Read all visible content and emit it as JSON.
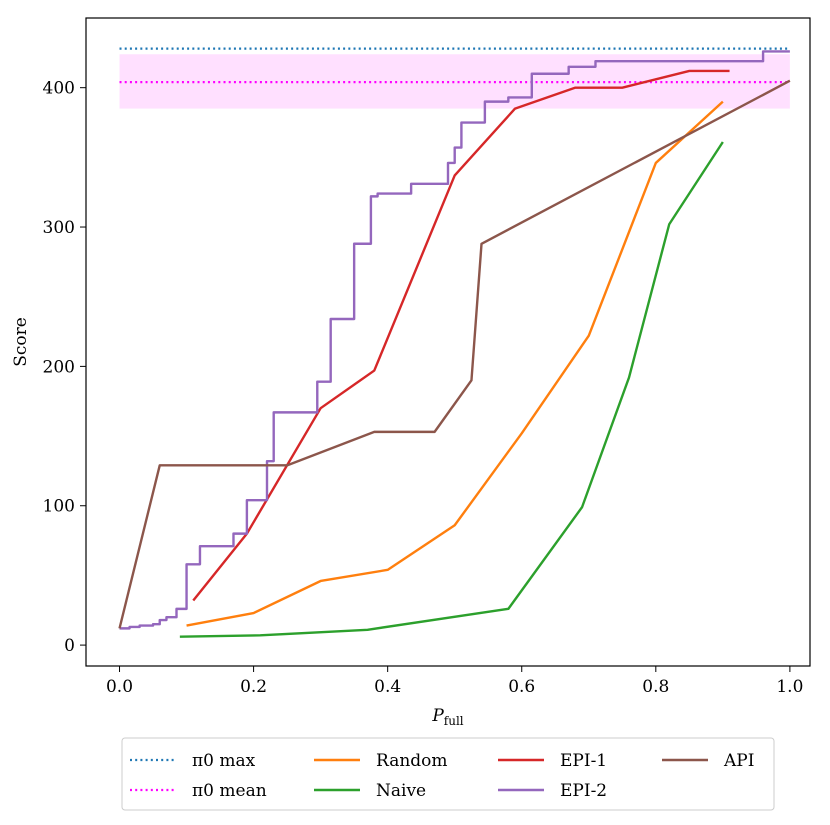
{
  "chart_data": {
    "type": "line",
    "title": "",
    "xlabel": "P",
    "xlabel_sub": "full",
    "ylabel": "Score",
    "xlim": [
      -0.05,
      1.03
    ],
    "ylim": [
      -15,
      450
    ],
    "xticks": [
      0.0,
      0.2,
      0.4,
      0.6,
      0.8,
      1.0
    ],
    "xtick_labels": [
      "0.0",
      "0.2",
      "0.4",
      "0.6",
      "0.8",
      "1.0"
    ],
    "yticks": [
      0,
      100,
      200,
      300,
      400
    ],
    "ytick_labels": [
      "0",
      "100",
      "200",
      "300",
      "400"
    ],
    "grid": false,
    "legend_position": "bottom-center-outside",
    "band": {
      "name": "π0 std band",
      "y_low": 385,
      "y_high": 424,
      "x_range": [
        0.0,
        1.0
      ],
      "color": "#ff00ff",
      "opacity": 0.12
    },
    "hlines": [
      {
        "name": "π0 max",
        "legend_label": "π0 max",
        "y": 428,
        "x_range": [
          0.0,
          1.0
        ],
        "color": "#1f77b4",
        "style": "dotted"
      },
      {
        "name": "π0 mean",
        "legend_label": "π0 mean",
        "y": 404,
        "x_range": [
          0.0,
          1.0
        ],
        "color": "#ff00ff",
        "style": "dotted"
      }
    ],
    "series": [
      {
        "name": "Random",
        "color": "#ff7f0e",
        "step": false,
        "points": [
          [
            0.1,
            14
          ],
          [
            0.2,
            23
          ],
          [
            0.3,
            46
          ],
          [
            0.4,
            54
          ],
          [
            0.5,
            86
          ],
          [
            0.6,
            152
          ],
          [
            0.7,
            222
          ],
          [
            0.8,
            346
          ],
          [
            0.9,
            390
          ]
        ]
      },
      {
        "name": "Naive",
        "color": "#2ca02c",
        "step": false,
        "points": [
          [
            0.09,
            6
          ],
          [
            0.21,
            7
          ],
          [
            0.37,
            11
          ],
          [
            0.58,
            26
          ],
          [
            0.69,
            99
          ],
          [
            0.76,
            192
          ],
          [
            0.82,
            302
          ],
          [
            0.9,
            361
          ]
        ]
      },
      {
        "name": "EPI-1",
        "color": "#d62728",
        "step": false,
        "points": [
          [
            0.11,
            32
          ],
          [
            0.19,
            80
          ],
          [
            0.3,
            170
          ],
          [
            0.38,
            197
          ],
          [
            0.5,
            337
          ],
          [
            0.59,
            385
          ],
          [
            0.68,
            400
          ],
          [
            0.75,
            400
          ],
          [
            0.85,
            412
          ],
          [
            0.91,
            412
          ]
        ]
      },
      {
        "name": "EPI-2",
        "color": "#9467bd",
        "step": true,
        "points": [
          [
            0.0,
            12
          ],
          [
            0.015,
            13
          ],
          [
            0.03,
            14
          ],
          [
            0.05,
            15
          ],
          [
            0.06,
            18
          ],
          [
            0.07,
            20
          ],
          [
            0.085,
            26
          ],
          [
            0.1,
            58
          ],
          [
            0.12,
            71
          ],
          [
            0.17,
            80
          ],
          [
            0.19,
            104
          ],
          [
            0.22,
            132
          ],
          [
            0.23,
            167
          ],
          [
            0.295,
            189
          ],
          [
            0.315,
            234
          ],
          [
            0.35,
            288
          ],
          [
            0.375,
            322
          ],
          [
            0.385,
            324
          ],
          [
            0.435,
            331
          ],
          [
            0.49,
            346
          ],
          [
            0.5,
            357
          ],
          [
            0.51,
            375
          ],
          [
            0.545,
            390
          ],
          [
            0.58,
            393
          ],
          [
            0.615,
            410
          ],
          [
            0.67,
            415
          ],
          [
            0.71,
            419
          ],
          [
            0.76,
            419
          ],
          [
            0.96,
            426
          ],
          [
            1.0,
            426
          ]
        ]
      },
      {
        "name": "API",
        "color": "#8c564b",
        "step": false,
        "points": [
          [
            0.0,
            12
          ],
          [
            0.06,
            129
          ],
          [
            0.25,
            129
          ],
          [
            0.38,
            153
          ],
          [
            0.47,
            153
          ],
          [
            0.525,
            190
          ],
          [
            0.54,
            288
          ],
          [
            1.0,
            405
          ]
        ]
      }
    ],
    "legend": [
      {
        "label": "π0 max",
        "ref": "π0 max"
      },
      {
        "label": "π0 mean",
        "ref": "π0 mean"
      },
      {
        "label": "Random",
        "ref": "Random"
      },
      {
        "label": "Naive",
        "ref": "Naive"
      },
      {
        "label": "EPI-1",
        "ref": "EPI-1"
      },
      {
        "label": "EPI-2",
        "ref": "EPI-2"
      },
      {
        "label": "API",
        "ref": "API"
      }
    ]
  }
}
